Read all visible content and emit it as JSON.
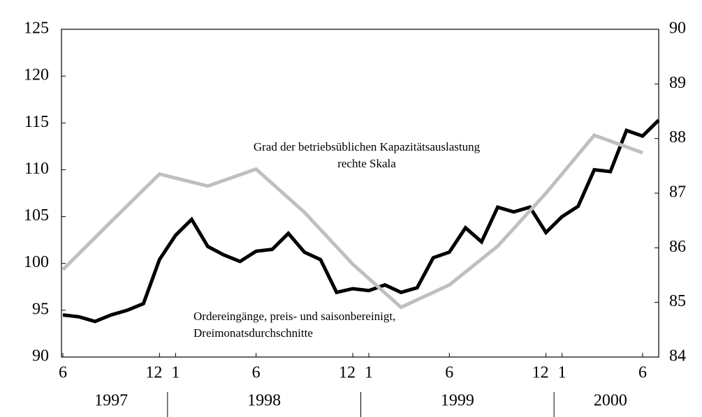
{
  "chart_data": {
    "type": "line",
    "x": [
      "1997-06",
      "1997-07",
      "1997-08",
      "1997-09",
      "1997-10",
      "1997-11",
      "1997-12",
      "1998-01",
      "1998-02",
      "1998-03",
      "1998-04",
      "1998-05",
      "1998-06",
      "1998-07",
      "1998-08",
      "1998-09",
      "1998-10",
      "1998-11",
      "1998-12",
      "1999-01",
      "1999-02",
      "1999-03",
      "1999-04",
      "1999-05",
      "1999-06",
      "1999-07",
      "1999-08",
      "1999-09",
      "1999-10",
      "1999-11",
      "1999-12",
      "2000-01",
      "2000-02",
      "2000-03",
      "2000-04",
      "2000-05",
      "2000-06",
      "2000-07"
    ],
    "series": [
      {
        "name": "Ordereingänge, preis- und saisonbereinigt,",
        "name_line2": "Dreimonatsdurchschnitte",
        "color": "#000000",
        "axis": "y",
        "values": [
          94.5,
          94.3,
          93.8,
          94.5,
          95.0,
          95.7,
          100.4,
          103.0,
          104.7,
          101.8,
          100.9,
          100.2,
          101.3,
          101.5,
          103.2,
          101.2,
          100.4,
          96.9,
          97.3,
          97.1,
          97.7,
          96.9,
          97.4,
          100.6,
          101.2,
          103.8,
          102.3,
          106.0,
          105.5,
          106.0,
          103.3,
          105.0,
          106.1,
          110.0,
          109.8,
          114.2,
          113.6,
          115.3
        ]
      },
      {
        "name": "Grad der betriebsüblichen Kapazitätsauslastung",
        "name_line2": "rechte Skala",
        "color": "#bfbfbf",
        "axis": "y2",
        "x": [
          "1997-06",
          "1997-09",
          "1997-12",
          "1998-03",
          "1998-06",
          "1998-09",
          "1998-12",
          "1999-03",
          "1999-06",
          "1999-09",
          "1999-12",
          "2000-03",
          "2000-06"
        ],
        "values": [
          85.6,
          86.48,
          87.35,
          87.13,
          87.44,
          86.65,
          85.7,
          84.91,
          85.32,
          86.03,
          87.0,
          88.06,
          87.74
        ]
      }
    ],
    "ylim": [
      90,
      125
    ],
    "yticks": [
      90,
      95,
      100,
      105,
      110,
      115,
      120,
      125
    ],
    "y2lim": [
      84,
      90
    ],
    "y2ticks": [
      84,
      85,
      86,
      87,
      88,
      89,
      90
    ],
    "xticks": [
      {
        "value": "1997-06",
        "label": "6"
      },
      {
        "value": "1997-12",
        "label": "12"
      },
      {
        "value": "1998-01",
        "label": "1"
      },
      {
        "value": "1998-06",
        "label": "6"
      },
      {
        "value": "1998-12",
        "label": "12"
      },
      {
        "value": "1999-01",
        "label": "1"
      },
      {
        "value": "1999-06",
        "label": "6"
      },
      {
        "value": "1999-12",
        "label": "12"
      },
      {
        "value": "2000-01",
        "label": "1"
      },
      {
        "value": "2000-06",
        "label": "6"
      }
    ],
    "years": [
      "1997",
      "1998",
      "1999",
      "2000"
    ]
  }
}
